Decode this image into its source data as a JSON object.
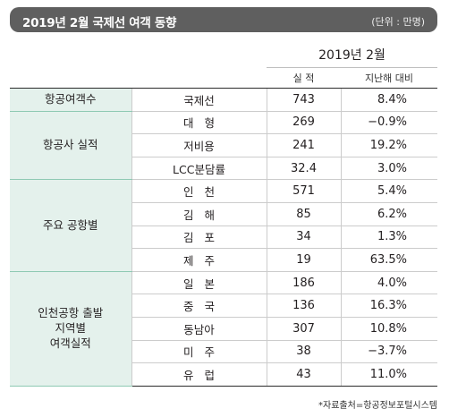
{
  "title": "2019년 2월 국제선 여객 동향",
  "unit": "(단위 : 만명)",
  "header": {
    "period": "2019년  2월",
    "col_actual": "실  적",
    "col_yoy": "지난해 대비"
  },
  "groups": [
    {
      "category": "항공여객수",
      "rows": [
        {
          "label": "국제선",
          "value": "743",
          "yoy": "8.4%"
        }
      ]
    },
    {
      "category": "항공사 실적",
      "rows": [
        {
          "label": "대형",
          "value": "269",
          "yoy": "−0.9%"
        },
        {
          "label": "저비용",
          "value": "241",
          "yoy": "19.2%"
        },
        {
          "label": "LCC분담률",
          "value": "32.4",
          "yoy": "3.0%"
        }
      ]
    },
    {
      "category": "주요 공항별",
      "rows": [
        {
          "label": "인천",
          "value": "571",
          "yoy": "5.4%"
        },
        {
          "label": "김해",
          "value": "85",
          "yoy": "6.2%"
        },
        {
          "label": "김포",
          "value": "34",
          "yoy": "1.3%"
        },
        {
          "label": "제주",
          "value": "19",
          "yoy": "63.5%"
        }
      ]
    },
    {
      "category": "인천공항 출발\n지역별\n여객실적",
      "rows": [
        {
          "label": "일본",
          "value": "186",
          "yoy": "4.0%"
        },
        {
          "label": "중국",
          "value": "136",
          "yoy": "16.3%"
        },
        {
          "label": "동남아",
          "value": "307",
          "yoy": "10.8%"
        },
        {
          "label": "미주",
          "value": "38",
          "yoy": "−3.7%"
        },
        {
          "label": "유럽",
          "value": "43",
          "yoy": "11.0%"
        }
      ]
    }
  ],
  "source": "*자료출처=항공정보포털시스템",
  "colors": {
    "title_bg": "#5f5f5f",
    "category_bg": "#e4f1ec",
    "category_border": "#8ec9b3"
  }
}
